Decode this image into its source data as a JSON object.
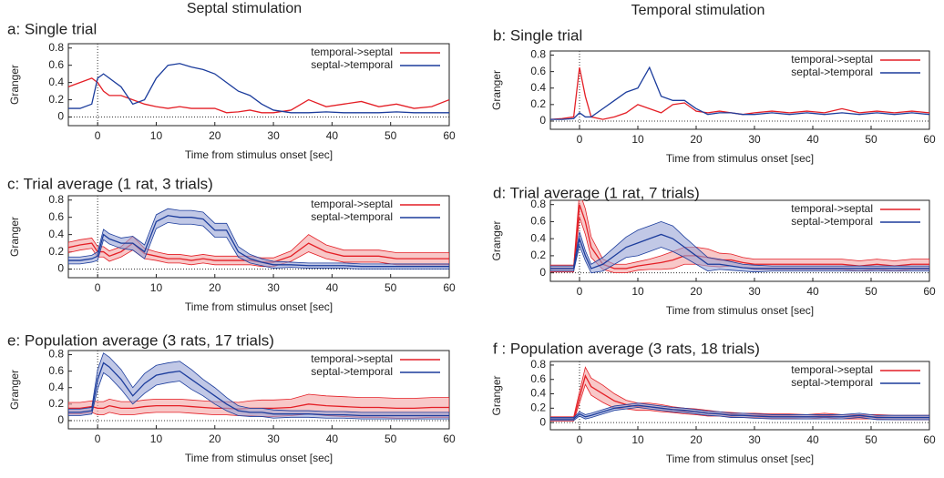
{
  "column_titles": [
    "Septal stimulation",
    "Temporal stimulation"
  ],
  "chart_data": [
    {
      "type": "line",
      "title": "a: Single trial",
      "x_label": "Time from stimulus onset [sec]",
      "y_label": "Granger",
      "x": [
        -5,
        -3,
        -1,
        0,
        1,
        2,
        4,
        6,
        8,
        10,
        12,
        14,
        16,
        18,
        20,
        22,
        24,
        26,
        28,
        30,
        33,
        36,
        39,
        42,
        45,
        48,
        51,
        54,
        57,
        60
      ],
      "xlim": [
        -5,
        60
      ],
      "xticks": [
        0,
        10,
        20,
        30,
        40,
        50,
        60
      ],
      "ylim": [
        -0.1,
        0.85
      ],
      "yticks": [
        0,
        0.2,
        0.4,
        0.6,
        0.8
      ],
      "legend": "upper right",
      "series": [
        {
          "name": "temporal->septal",
          "color": "#e41f26",
          "values": [
            0.35,
            0.4,
            0.45,
            0.4,
            0.3,
            0.25,
            0.25,
            0.2,
            0.15,
            0.12,
            0.1,
            0.12,
            0.1,
            0.1,
            0.1,
            0.05,
            0.06,
            0.08,
            0.05,
            0.05,
            0.08,
            0.2,
            0.12,
            0.15,
            0.18,
            0.12,
            0.15,
            0.1,
            0.12,
            0.2
          ]
        },
        {
          "name": "septal->temporal",
          "color": "#1b3c9c",
          "values": [
            0.1,
            0.1,
            0.15,
            0.45,
            0.5,
            0.45,
            0.35,
            0.15,
            0.2,
            0.45,
            0.6,
            0.62,
            0.58,
            0.55,
            0.5,
            0.4,
            0.3,
            0.25,
            0.15,
            0.08,
            0.05,
            0.05,
            0.06,
            0.05,
            0.05,
            0.05,
            0.06,
            0.05,
            0.05,
            0.05
          ]
        }
      ]
    },
    {
      "type": "line",
      "title": "b: Single trial",
      "x_label": "Time from stimulus onset [sec]",
      "y_label": "Granger",
      "x": [
        -5,
        -3,
        -1,
        0,
        1,
        2,
        4,
        6,
        8,
        10,
        12,
        14,
        16,
        18,
        20,
        22,
        24,
        26,
        28,
        30,
        33,
        36,
        39,
        42,
        45,
        48,
        51,
        54,
        57,
        60
      ],
      "xlim": [
        -5,
        60
      ],
      "xticks": [
        0,
        10,
        20,
        30,
        40,
        50,
        60
      ],
      "ylim": [
        -0.1,
        0.85
      ],
      "yticks": [
        0,
        0.2,
        0.4,
        0.6,
        0.8
      ],
      "legend": "upper right",
      "series": [
        {
          "name": "temporal->septal",
          "color": "#e41f26",
          "values": [
            0.02,
            0.03,
            0.05,
            0.65,
            0.3,
            0.05,
            0.02,
            0.05,
            0.1,
            0.2,
            0.15,
            0.1,
            0.2,
            0.22,
            0.12,
            0.1,
            0.12,
            0.1,
            0.08,
            0.1,
            0.12,
            0.1,
            0.12,
            0.1,
            0.15,
            0.1,
            0.12,
            0.1,
            0.12,
            0.1
          ]
        },
        {
          "name": "septal->temporal",
          "color": "#1b3c9c",
          "values": [
            0.02,
            0.02,
            0.03,
            0.1,
            0.05,
            0.05,
            0.15,
            0.25,
            0.35,
            0.4,
            0.65,
            0.3,
            0.25,
            0.25,
            0.15,
            0.08,
            0.1,
            0.1,
            0.08,
            0.08,
            0.1,
            0.08,
            0.1,
            0.08,
            0.1,
            0.08,
            0.1,
            0.08,
            0.1,
            0.08
          ]
        }
      ]
    },
    {
      "type": "band",
      "title": "c: Trial average (1 rat, 3 trials)",
      "x_label": "Time from stimulus onset [sec]",
      "y_label": "Granger",
      "x": [
        -5,
        -3,
        -1,
        0,
        1,
        2,
        4,
        6,
        8,
        10,
        12,
        14,
        16,
        18,
        20,
        22,
        24,
        26,
        28,
        30,
        33,
        36,
        39,
        42,
        45,
        48,
        51,
        54,
        57,
        60
      ],
      "xlim": [
        -5,
        60
      ],
      "xticks": [
        0,
        10,
        20,
        30,
        40,
        50,
        60
      ],
      "ylim": [
        -0.1,
        0.85
      ],
      "yticks": [
        0,
        0.2,
        0.4,
        0.6,
        0.8
      ],
      "legend": "upper right",
      "series": [
        {
          "name": "temporal->septal",
          "color": "#e41f26",
          "band_color": "#f3a3a3",
          "values": [
            0.25,
            0.28,
            0.3,
            0.2,
            0.2,
            0.15,
            0.2,
            0.3,
            0.18,
            0.15,
            0.12,
            0.12,
            0.1,
            0.12,
            0.1,
            0.1,
            0.1,
            0.1,
            0.08,
            0.08,
            0.15,
            0.3,
            0.2,
            0.15,
            0.15,
            0.15,
            0.12,
            0.12,
            0.12,
            0.12
          ],
          "errors": [
            0.06,
            0.06,
            0.06,
            0.06,
            0.06,
            0.06,
            0.06,
            0.08,
            0.06,
            0.05,
            0.05,
            0.05,
            0.05,
            0.05,
            0.05,
            0.05,
            0.05,
            0.05,
            0.05,
            0.05,
            0.06,
            0.1,
            0.08,
            0.07,
            0.07,
            0.07,
            0.07,
            0.07,
            0.07,
            0.07
          ]
        },
        {
          "name": "septal->temporal",
          "color": "#1b3c9c",
          "band_color": "#98a3d6",
          "values": [
            0.1,
            0.1,
            0.12,
            0.15,
            0.4,
            0.35,
            0.3,
            0.3,
            0.2,
            0.55,
            0.62,
            0.6,
            0.6,
            0.58,
            0.45,
            0.45,
            0.2,
            0.12,
            0.08,
            0.05,
            0.05,
            0.04,
            0.04,
            0.04,
            0.03,
            0.03,
            0.03,
            0.03,
            0.03,
            0.03
          ],
          "errors": [
            0.04,
            0.04,
            0.04,
            0.05,
            0.06,
            0.06,
            0.06,
            0.08,
            0.08,
            0.08,
            0.08,
            0.08,
            0.08,
            0.08,
            0.08,
            0.08,
            0.06,
            0.05,
            0.04,
            0.04,
            0.03,
            0.03,
            0.03,
            0.03,
            0.03,
            0.03,
            0.03,
            0.03,
            0.03,
            0.03
          ]
        }
      ]
    },
    {
      "type": "band",
      "title": "d: Trial average (1 rat, 7 trials)",
      "x_label": "Time from stimulus onset [sec]",
      "y_label": "Granger",
      "x": [
        -5,
        -3,
        -1,
        0,
        1,
        2,
        4,
        6,
        8,
        10,
        12,
        14,
        16,
        18,
        20,
        22,
        24,
        26,
        28,
        30,
        33,
        36,
        39,
        42,
        45,
        48,
        51,
        54,
        57,
        60
      ],
      "xlim": [
        -5,
        60
      ],
      "xticks": [
        0,
        10,
        20,
        30,
        40,
        50,
        60
      ],
      "ylim": [
        -0.1,
        0.85
      ],
      "yticks": [
        0,
        0.2,
        0.4,
        0.6,
        0.8
      ],
      "legend": "upper right",
      "series": [
        {
          "name": "temporal->septal",
          "color": "#e41f26",
          "band_color": "#f3a3a3",
          "values": [
            0.05,
            0.05,
            0.05,
            0.8,
            0.6,
            0.3,
            0.1,
            0.05,
            0.05,
            0.08,
            0.1,
            0.12,
            0.15,
            0.2,
            0.2,
            0.18,
            0.15,
            0.15,
            0.12,
            0.1,
            0.1,
            0.1,
            0.1,
            0.1,
            0.1,
            0.08,
            0.1,
            0.08,
            0.1,
            0.1
          ],
          "errors": [
            0.04,
            0.04,
            0.04,
            0.15,
            0.15,
            0.12,
            0.06,
            0.05,
            0.05,
            0.05,
            0.06,
            0.08,
            0.1,
            0.1,
            0.1,
            0.1,
            0.08,
            0.07,
            0.06,
            0.06,
            0.06,
            0.06,
            0.06,
            0.06,
            0.06,
            0.06,
            0.06,
            0.06,
            0.06,
            0.06
          ]
        },
        {
          "name": "septal->temporal",
          "color": "#1b3c9c",
          "band_color": "#98a3d6",
          "values": [
            0.05,
            0.05,
            0.05,
            0.4,
            0.2,
            0.05,
            0.1,
            0.2,
            0.3,
            0.35,
            0.4,
            0.45,
            0.4,
            0.3,
            0.2,
            0.1,
            0.1,
            0.08,
            0.06,
            0.05,
            0.05,
            0.05,
            0.05,
            0.05,
            0.05,
            0.05,
            0.05,
            0.05,
            0.05,
            0.05
          ],
          "errors": [
            0.03,
            0.03,
            0.03,
            0.08,
            0.06,
            0.05,
            0.08,
            0.1,
            0.12,
            0.15,
            0.15,
            0.15,
            0.15,
            0.12,
            0.1,
            0.08,
            0.06,
            0.05,
            0.04,
            0.04,
            0.03,
            0.03,
            0.03,
            0.03,
            0.03,
            0.03,
            0.03,
            0.03,
            0.03,
            0.03
          ]
        }
      ]
    },
    {
      "type": "band",
      "title": "e: Population average (3 rats, 17 trials)",
      "x_label": "Time from stimulus onset [sec]",
      "y_label": "Granger",
      "x": [
        -5,
        -3,
        -1,
        0,
        1,
        2,
        4,
        6,
        8,
        10,
        12,
        14,
        16,
        18,
        20,
        22,
        24,
        26,
        28,
        30,
        33,
        36,
        39,
        42,
        45,
        48,
        51,
        54,
        57,
        60
      ],
      "xlim": [
        -5,
        60
      ],
      "xticks": [
        0,
        10,
        20,
        30,
        40,
        50,
        60
      ],
      "ylim": [
        -0.1,
        0.85
      ],
      "yticks": [
        0,
        0.2,
        0.4,
        0.6,
        0.8
      ],
      "legend": "upper right",
      "series": [
        {
          "name": "temporal->septal",
          "color": "#e41f26",
          "band_color": "#f3a3a3",
          "values": [
            0.15,
            0.15,
            0.17,
            0.15,
            0.15,
            0.18,
            0.15,
            0.15,
            0.17,
            0.18,
            0.18,
            0.18,
            0.17,
            0.16,
            0.15,
            0.15,
            0.14,
            0.15,
            0.15,
            0.15,
            0.16,
            0.2,
            0.18,
            0.17,
            0.16,
            0.16,
            0.15,
            0.15,
            0.16,
            0.16
          ],
          "errors": [
            0.07,
            0.07,
            0.07,
            0.08,
            0.08,
            0.08,
            0.08,
            0.08,
            0.08,
            0.08,
            0.08,
            0.08,
            0.08,
            0.08,
            0.08,
            0.08,
            0.08,
            0.09,
            0.1,
            0.1,
            0.1,
            0.12,
            0.12,
            0.12,
            0.12,
            0.12,
            0.12,
            0.12,
            0.12,
            0.12
          ]
        },
        {
          "name": "septal->temporal",
          "color": "#1b3c9c",
          "band_color": "#98a3d6",
          "values": [
            0.1,
            0.1,
            0.12,
            0.5,
            0.7,
            0.65,
            0.5,
            0.3,
            0.45,
            0.55,
            0.58,
            0.6,
            0.5,
            0.4,
            0.3,
            0.2,
            0.12,
            0.1,
            0.1,
            0.08,
            0.08,
            0.08,
            0.07,
            0.07,
            0.06,
            0.06,
            0.06,
            0.06,
            0.06,
            0.06
          ],
          "errors": [
            0.04,
            0.04,
            0.04,
            0.12,
            0.12,
            0.12,
            0.12,
            0.1,
            0.12,
            0.12,
            0.12,
            0.12,
            0.12,
            0.1,
            0.1,
            0.08,
            0.06,
            0.05,
            0.05,
            0.05,
            0.04,
            0.04,
            0.04,
            0.04,
            0.04,
            0.04,
            0.04,
            0.04,
            0.04,
            0.04
          ]
        }
      ]
    },
    {
      "type": "band",
      "title": "f : Population average (3 rats, 18 trials)",
      "x_label": "Time from stimulus onset [sec]",
      "y_label": "Granger",
      "x": [
        -5,
        -3,
        -1,
        0,
        1,
        2,
        4,
        6,
        8,
        10,
        12,
        14,
        16,
        18,
        20,
        22,
        24,
        26,
        28,
        30,
        33,
        36,
        39,
        42,
        45,
        48,
        51,
        54,
        57,
        60
      ],
      "xlim": [
        -5,
        60
      ],
      "xticks": [
        0,
        10,
        20,
        30,
        40,
        50,
        60
      ],
      "ylim": [
        -0.1,
        0.85
      ],
      "yticks": [
        0,
        0.2,
        0.4,
        0.6,
        0.8
      ],
      "legend": "upper right",
      "series": [
        {
          "name": "temporal->septal",
          "color": "#e41f26",
          "band_color": "#f3a3a3",
          "values": [
            0.05,
            0.05,
            0.05,
            0.35,
            0.65,
            0.5,
            0.4,
            0.3,
            0.25,
            0.22,
            0.22,
            0.2,
            0.18,
            0.16,
            0.15,
            0.13,
            0.12,
            0.11,
            0.1,
            0.1,
            0.09,
            0.09,
            0.08,
            0.1,
            0.08,
            0.08,
            0.08,
            0.07,
            0.07,
            0.07
          ],
          "errors": [
            0.03,
            0.03,
            0.03,
            0.08,
            0.12,
            0.12,
            0.12,
            0.1,
            0.06,
            0.05,
            0.05,
            0.05,
            0.04,
            0.04,
            0.04,
            0.04,
            0.03,
            0.03,
            0.03,
            0.03,
            0.03,
            0.03,
            0.03,
            0.03,
            0.03,
            0.03,
            0.03,
            0.03,
            0.03,
            0.03
          ]
        },
        {
          "name": "septal->temporal",
          "color": "#1b3c9c",
          "band_color": "#98a3d6",
          "values": [
            0.05,
            0.05,
            0.05,
            0.12,
            0.08,
            0.1,
            0.15,
            0.2,
            0.22,
            0.24,
            0.22,
            0.2,
            0.18,
            0.17,
            0.15,
            0.13,
            0.12,
            0.1,
            0.1,
            0.09,
            0.08,
            0.08,
            0.08,
            0.08,
            0.08,
            0.1,
            0.07,
            0.07,
            0.07,
            0.07
          ],
          "errors": [
            0.02,
            0.02,
            0.02,
            0.03,
            0.03,
            0.03,
            0.03,
            0.03,
            0.03,
            0.03,
            0.03,
            0.03,
            0.03,
            0.03,
            0.03,
            0.03,
            0.03,
            0.03,
            0.03,
            0.03,
            0.03,
            0.03,
            0.03,
            0.03,
            0.03,
            0.03,
            0.03,
            0.03,
            0.03,
            0.03
          ]
        }
      ]
    }
  ]
}
